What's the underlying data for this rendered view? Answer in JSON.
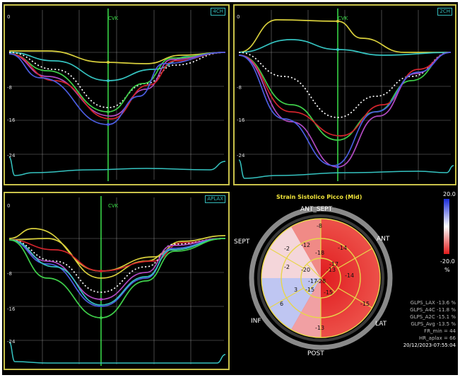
{
  "panels": [
    {
      "id": "4CH",
      "label": "4CH",
      "cvk": "CVK",
      "ticks": [
        "0",
        "-8",
        "-16",
        "-24"
      ]
    },
    {
      "id": "2CH",
      "label": "2CH",
      "cvk": "CVK",
      "ticks": [
        "0",
        "-8",
        "-16",
        "-24"
      ]
    },
    {
      "id": "APLAX",
      "label": "APLAX",
      "cvk": "CVK",
      "ticks": [
        "0",
        "-8",
        "-16",
        "-24"
      ]
    }
  ],
  "bullseye": {
    "title": "Strain Sistolico Picco (Mid)",
    "labels": {
      "ant_sept": "ANT_SEPT",
      "ant": "ANT",
      "lat": "LAT",
      "post": "POST",
      "inf": "INF",
      "sept": "SEPT"
    },
    "values": [
      "-8",
      "-2",
      "-12",
      "-14",
      "-2",
      "-18",
      "-20",
      "-13",
      "-17",
      "-28",
      "-17",
      "-14",
      "3",
      "-15",
      "-15",
      "-15",
      "6",
      "-13"
    ]
  },
  "scale": {
    "max": "20.0",
    "min": "-20.0",
    "unit": "%"
  },
  "stats": [
    "GLPS_LAX  -13.6 %",
    "GLPS_A4C  -11.8 %",
    "GLPS_A2C  -15.1 %",
    "GLPS_Avg  -13.5 %",
    "FR_min = 44",
    "HR_aplax = 66",
    "20/12/2023-07:55:04"
  ],
  "colors": {
    "yellow": "#d8cf3c",
    "cyan": "#35c3c0",
    "red": "#d2242c",
    "blue": "#4b5de0",
    "green": "#3fcf4a",
    "magenta": "#b04ac0",
    "white": "#ffffff"
  }
}
